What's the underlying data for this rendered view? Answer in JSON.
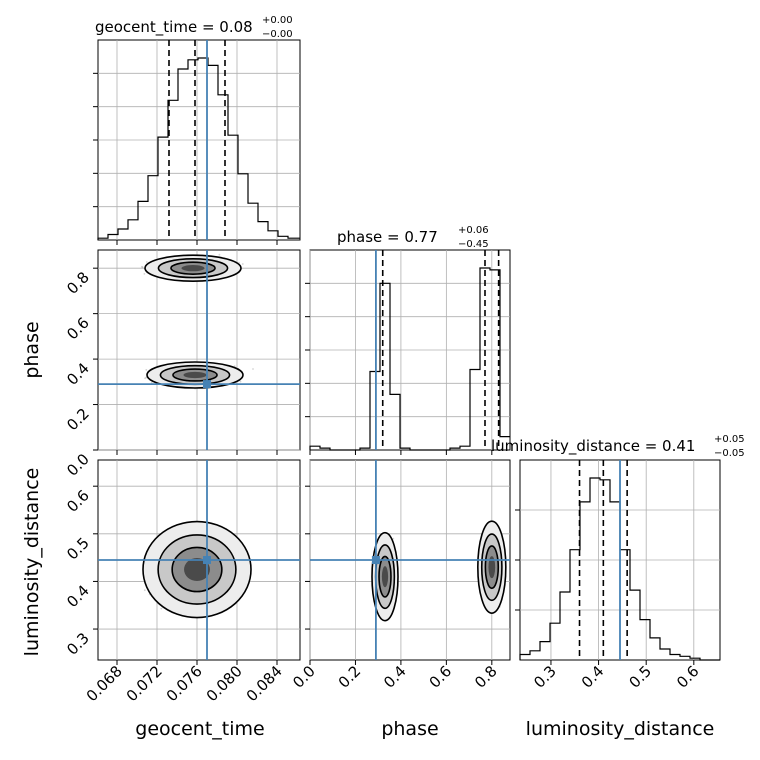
{
  "chart_data": {
    "type": "corner",
    "parameters": [
      "geocent_time",
      "phase",
      "luminosity_distance"
    ],
    "truths": {
      "geocent_time": 0.077,
      "phase": 0.29,
      "luminosity_distance": 0.445
    },
    "colors": {
      "truth": "#4682b4",
      "hist": "#000000",
      "grid": "#b0b0b0",
      "points": "#808080"
    },
    "ranges": {
      "geocent_time": [
        0.0661,
        0.0863
      ],
      "phase": [
        0.0,
        0.88
      ],
      "luminosity_distance": [
        0.235,
        0.655
      ]
    },
    "ticks": {
      "geocent_time": [
        "0.068",
        "0.072",
        "0.076",
        "0.080",
        "0.084"
      ],
      "phase": [
        "0.0",
        "0.2",
        "0.4",
        "0.6",
        "0.8"
      ],
      "luminosity_distance_y": [
        "0.3",
        "0.4",
        "0.5",
        "0.6"
      ],
      "luminosity_distance_x": [
        "0.3",
        "0.4",
        "0.5",
        "0.6"
      ]
    },
    "titles": {
      "geocent_time": {
        "main": "geocent_time = 0.08",
        "sup": "+0.00",
        "sub": "−0.00"
      },
      "phase": {
        "main": "phase = 0.77",
        "sup": "+0.06",
        "sub": "−0.45"
      },
      "luminosity_distance": {
        "main": "luminosity_distance = 0.41",
        "sup": "+0.05",
        "sub": "−0.05"
      }
    },
    "quantiles": {
      "geocent_time": [
        0.0732,
        0.0758,
        0.0788
      ],
      "phase": [
        0.32,
        0.77,
        0.83
      ],
      "luminosity_distance": [
        0.36,
        0.41,
        0.46
      ]
    },
    "hist_1d": {
      "geocent_time": {
        "edges": [
          0.0661,
          0.0671,
          0.0681,
          0.0691,
          0.0701,
          0.0711,
          0.0721,
          0.0731,
          0.0741,
          0.0751,
          0.0761,
          0.0771,
          0.0781,
          0.0791,
          0.0801,
          0.0811,
          0.0821,
          0.0831,
          0.0841,
          0.0851,
          0.0863
        ],
        "counts": [
          1,
          3,
          6,
          11,
          21,
          35,
          56,
          76,
          93,
          98,
          99,
          95,
          79,
          57,
          36,
          20,
          10,
          5,
          2,
          1
        ]
      },
      "phase": {
        "edges": [
          0.0,
          0.044,
          0.088,
          0.132,
          0.176,
          0.22,
          0.264,
          0.308,
          0.352,
          0.396,
          0.44,
          0.484,
          0.528,
          0.572,
          0.616,
          0.66,
          0.704,
          0.748,
          0.792,
          0.836,
          0.88
        ],
        "counts": [
          2,
          1,
          0,
          0,
          0,
          1,
          41,
          87,
          29,
          1,
          0,
          0,
          0,
          0,
          1,
          2,
          42,
          95,
          94,
          7
        ]
      },
      "luminosity_distance": {
        "edges": [
          0.235,
          0.256,
          0.277,
          0.298,
          0.319,
          0.34,
          0.361,
          0.382,
          0.403,
          0.424,
          0.445,
          0.466,
          0.487,
          0.508,
          0.529,
          0.55,
          0.571,
          0.592,
          0.613,
          0.634,
          0.655
        ],
        "counts": [
          3,
          5,
          10,
          20,
          37,
          60,
          86,
          99,
          98,
          86,
          60,
          38,
          22,
          12,
          6,
          3,
          2,
          1,
          0,
          0
        ]
      }
    },
    "axis_labels": {
      "geocent_time": "geocent_time",
      "phase": "phase",
      "luminosity_distance": "luminosity_distance"
    }
  }
}
